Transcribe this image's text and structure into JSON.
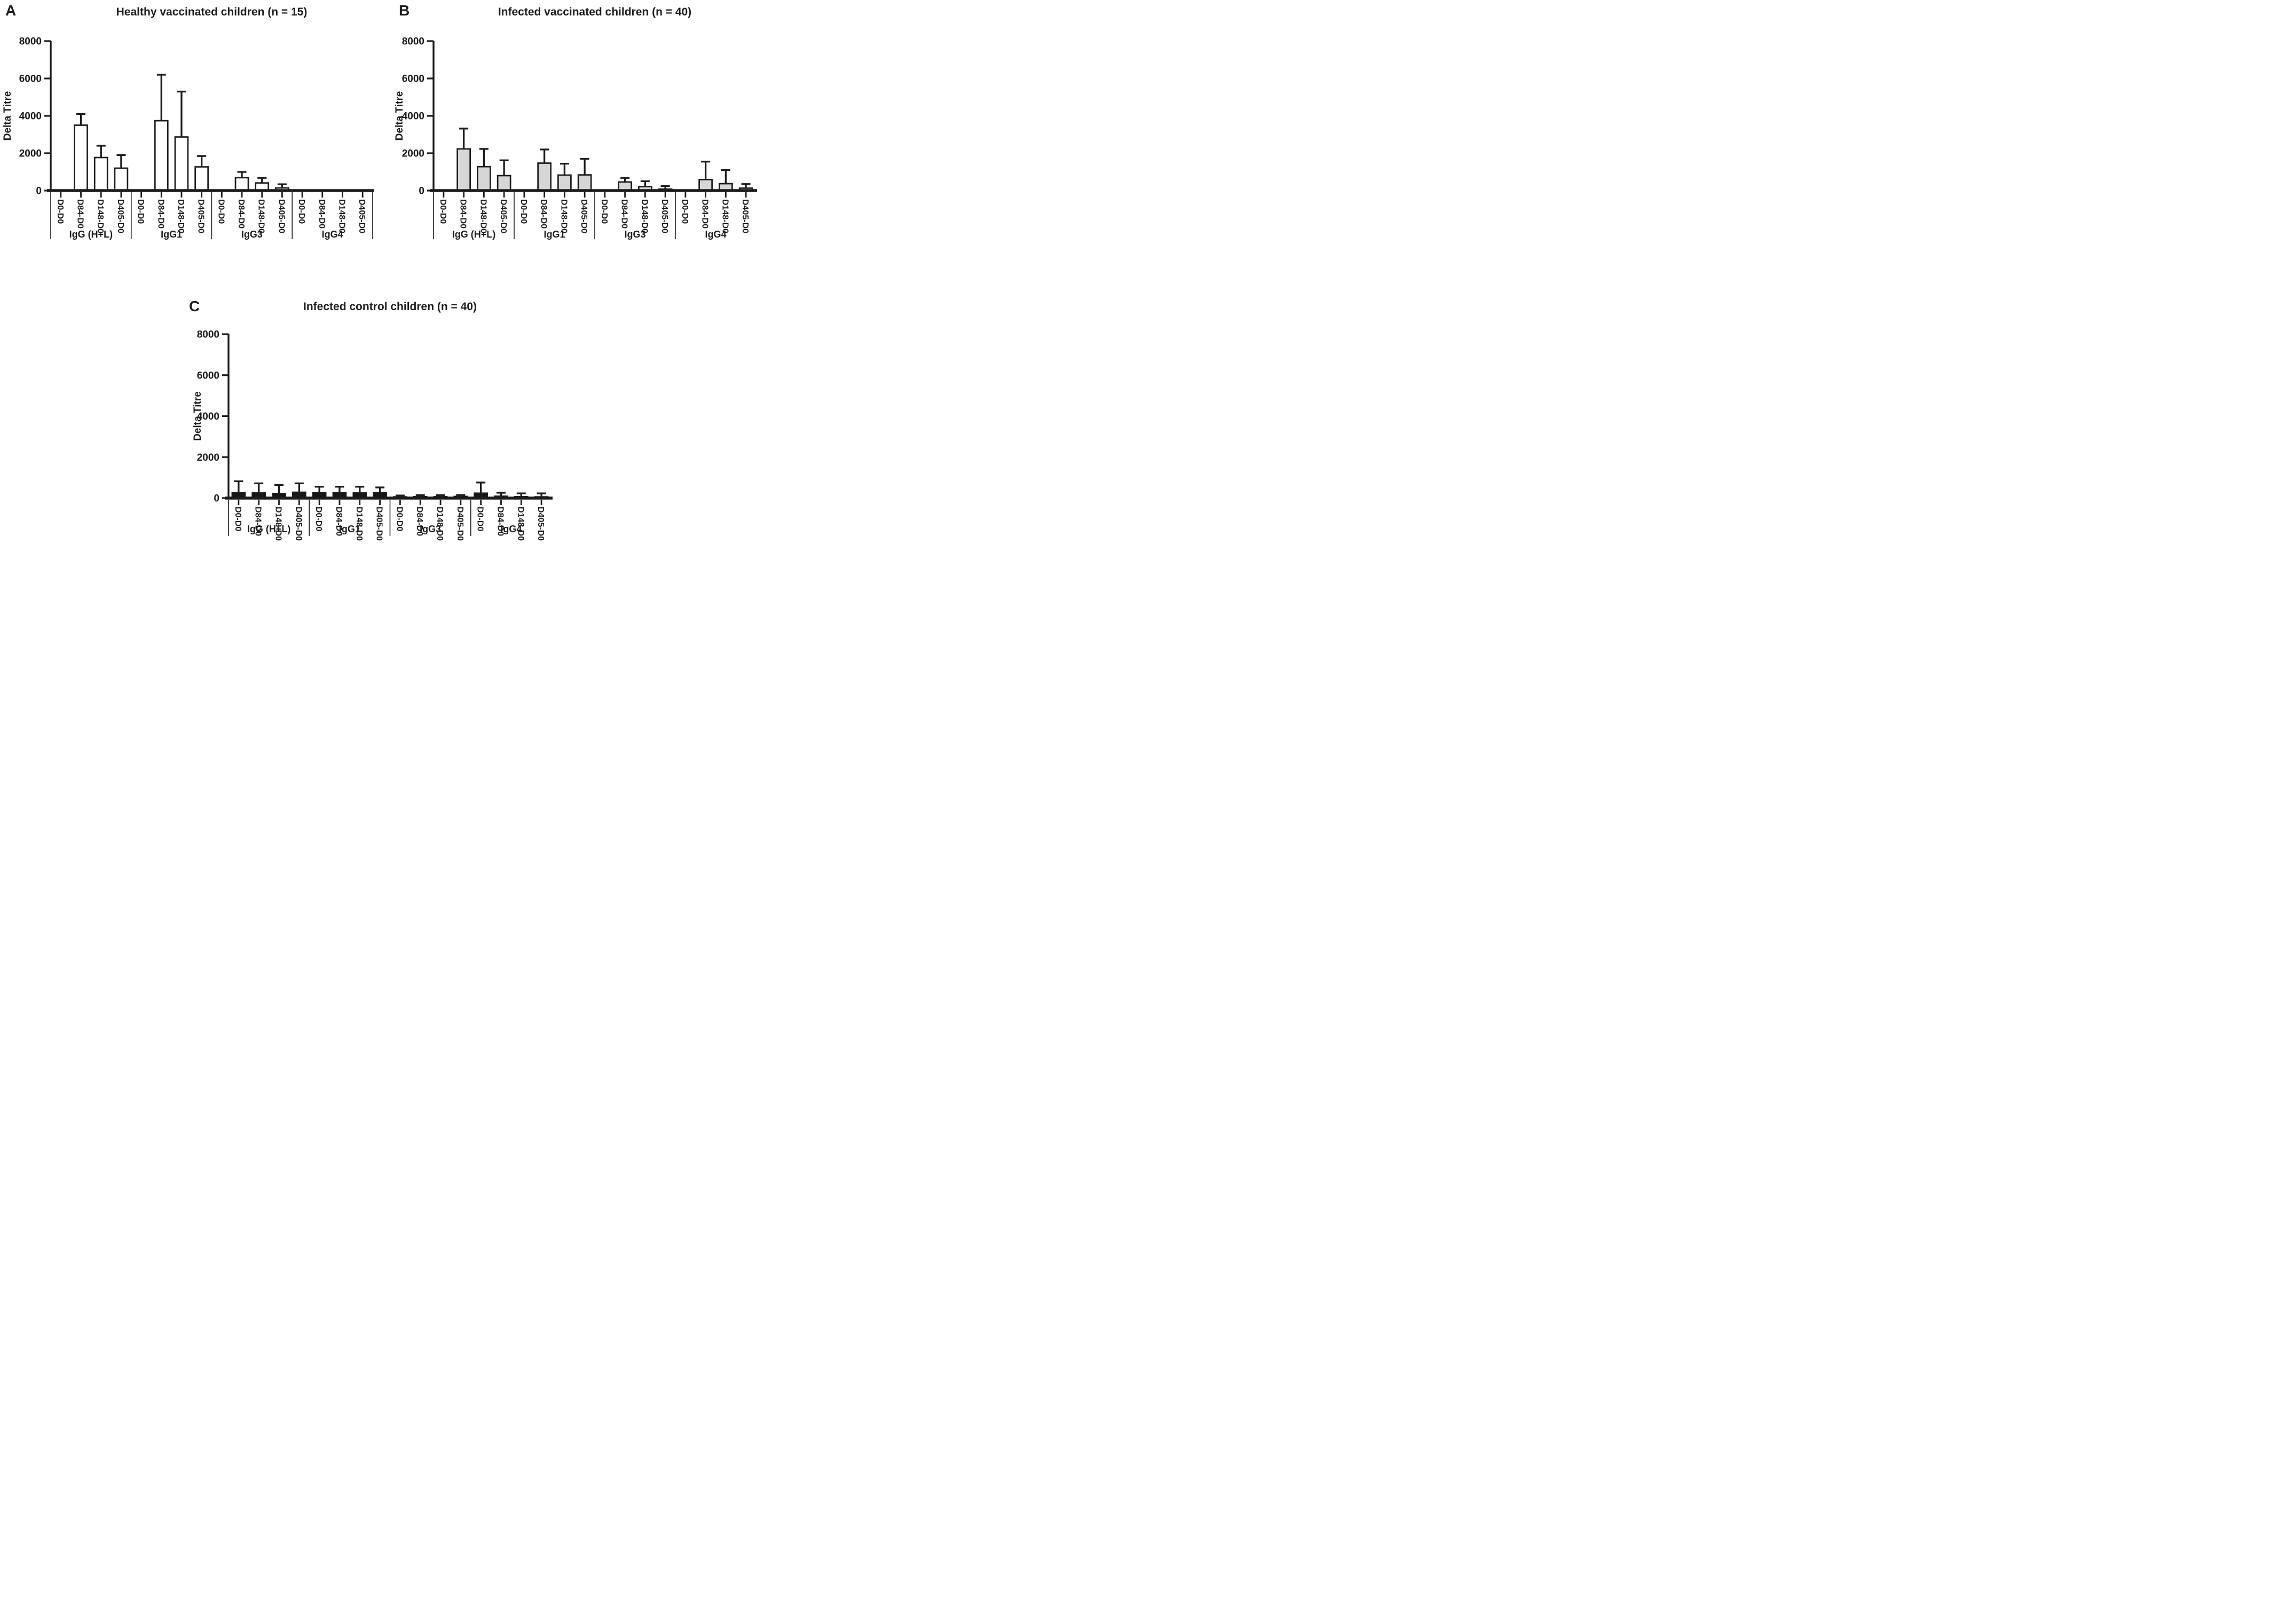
{
  "chart_data": [
    {
      "panel_label": "A",
      "type": "bar",
      "title": "Healthy vaccinated children (n = 15)",
      "ylabel": "Delta Titre",
      "ylim": [
        0,
        8000
      ],
      "yticks": [
        0,
        2000,
        4000,
        6000,
        8000
      ],
      "grid": false,
      "legend": "none",
      "error_bars": "upper whiskers (+SD)",
      "bar_fill": "#ffffff",
      "bar_stroke": "#1c1c1c",
      "categories": [
        "D0-D0",
        "D84-D0",
        "D148-D0",
        "D405-D0"
      ],
      "groups": [
        {
          "label": "IgG (H+L)",
          "values": [
            0,
            3500,
            1770,
            1200
          ],
          "upper": [
            0,
            4100,
            2400,
            1900
          ]
        },
        {
          "label": "IgG1",
          "values": [
            0,
            3740,
            2870,
            1270
          ],
          "upper": [
            0,
            6200,
            5300,
            1850
          ]
        },
        {
          "label": "IgG3",
          "values": [
            0,
            690,
            410,
            140
          ],
          "upper": [
            0,
            1000,
            680,
            340
          ]
        },
        {
          "label": "IgG4",
          "values": [
            0,
            0,
            0,
            0
          ],
          "upper": [
            0,
            0,
            0,
            0
          ]
        }
      ]
    },
    {
      "panel_label": "B",
      "type": "bar",
      "title": "Infected vaccinated children (n = 40)",
      "ylabel": "Delta Titre",
      "ylim": [
        0,
        8000
      ],
      "yticks": [
        0,
        2000,
        4000,
        6000,
        8000
      ],
      "grid": false,
      "legend": "none",
      "error_bars": "upper whiskers (+SD)",
      "bar_fill": "#d6d6d6",
      "bar_stroke": "#1c1c1c",
      "categories": [
        "D0-D0",
        "D84-D0",
        "D148-D0",
        "D405-D0"
      ],
      "groups": [
        {
          "label": "IgG (H+L)",
          "values": [
            0,
            2230,
            1280,
            800
          ],
          "upper": [
            0,
            3320,
            2230,
            1620
          ]
        },
        {
          "label": "IgG1",
          "values": [
            0,
            1470,
            830,
            840
          ],
          "upper": [
            0,
            2200,
            1440,
            1700
          ]
        },
        {
          "label": "IgG3",
          "values": [
            0,
            460,
            210,
            80
          ],
          "upper": [
            0,
            680,
            500,
            240
          ]
        },
        {
          "label": "IgG4",
          "values": [
            0,
            590,
            370,
            130
          ],
          "upper": [
            0,
            1550,
            1100,
            350
          ]
        }
      ]
    },
    {
      "panel_label": "C",
      "type": "bar",
      "title": "Infected control children (n = 40)",
      "ylabel": "Delta Titre",
      "ylim": [
        0,
        8000
      ],
      "yticks": [
        0,
        2000,
        4000,
        6000,
        8000
      ],
      "grid": false,
      "legend": "none",
      "error_bars": "upper whiskers (+SD)",
      "bar_fill": "#161616",
      "bar_stroke": "#1c1c1c",
      "categories": [
        "D0-D0",
        "D84-D0",
        "D148-D0",
        "D405-D0"
      ],
      "groups": [
        {
          "label": "IgG (H+L)",
          "values": [
            260,
            250,
            225,
            285
          ],
          "upper": [
            820,
            720,
            640,
            720
          ]
        },
        {
          "label": "IgG1",
          "values": [
            255,
            255,
            250,
            255
          ],
          "upper": [
            555,
            555,
            555,
            520
          ]
        },
        {
          "label": "IgG3",
          "values": [
            60,
            70,
            70,
            80
          ],
          "upper": [
            125,
            140,
            140,
            150
          ]
        },
        {
          "label": "IgG4",
          "values": [
            240,
            90,
            70,
            60
          ],
          "upper": [
            760,
            260,
            230,
            230
          ]
        }
      ]
    }
  ],
  "style": {
    "ink": "#1c1c1c",
    "background": "#ffffff"
  }
}
